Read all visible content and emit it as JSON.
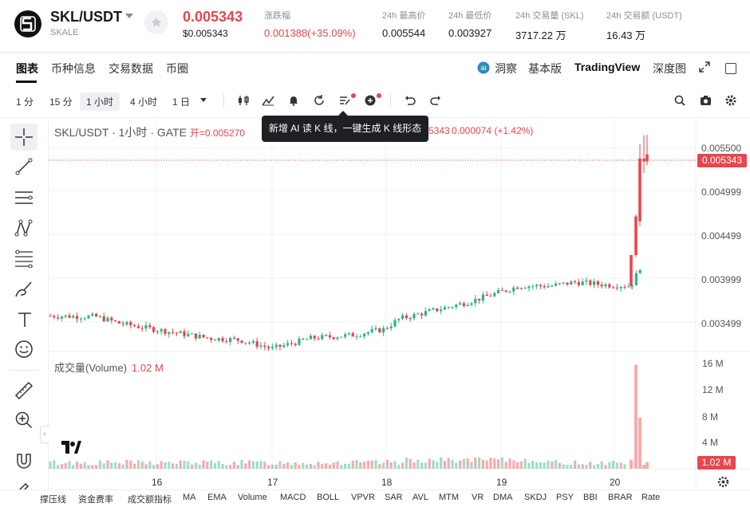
{
  "header": {
    "pair": "SKL/USDT",
    "name": "SKALE",
    "price": "0.005343",
    "price_usd": "$0.005343",
    "stats": [
      {
        "label": "涨跌幅",
        "value": "0.001388(+35.09%)",
        "red": true
      },
      {
        "label": "24h 最高价",
        "value": "0.005544"
      },
      {
        "label": "24h 最低价",
        "value": "0.003927"
      },
      {
        "label": "24h 交易量 (SKL)",
        "value": "3717.22 万"
      },
      {
        "label": "24h 交易额 (USDT)",
        "value": "16.43 万"
      }
    ]
  },
  "tabs": [
    "图表",
    "币种信息",
    "交易数据",
    "币圈"
  ],
  "right_tabs": [
    "洞察",
    "基本版",
    "TradingView",
    "深度图"
  ],
  "timeframes": [
    "1 分",
    "15 分",
    "1 小时",
    "4 小时",
    "1 日"
  ],
  "active_timeframe": "1 小时",
  "chart": {
    "legend_title": "SKL/USDT · 1小时 · GATE",
    "open_label": "开=0.005270",
    "change_fragment": "5343",
    "change": "0.000074 (+1.42%)",
    "tooltip": "新增 AI 读 K 线，一键生成 K 线形态",
    "price_badge": "0.005343",
    "volume_label": "成交量(Volume)",
    "volume_value": "1.02 M",
    "volume_badge": "1.02 M"
  },
  "chart_data": {
    "type": "candlestick",
    "price_axis": [
      "0.005500",
      "0.004999",
      "0.004499",
      "0.003999",
      "0.003499"
    ],
    "volume_axis": [
      "16 M",
      "12 M",
      "8 M",
      "4 M"
    ],
    "x_ticks": [
      "16",
      "17",
      "18",
      "19",
      "20"
    ],
    "last_price": 0.005343,
    "last_volume_m": 1.02,
    "ylim": [
      0.0033,
      0.00572
    ],
    "vol_max_m": 17.5
  },
  "indicators": [
    "撑压线",
    "资金费率",
    "成交额指标",
    "MA",
    "EMA",
    "Volume",
    "MACD",
    "BOLL",
    "VPVR",
    "SAR",
    "AVL",
    "MTM",
    "VR",
    "DMA",
    "SKDJ",
    "PSY",
    "BBI",
    "BRAR",
    "Rate"
  ],
  "colors": {
    "up": "#2bb48a",
    "down": "#e8464c",
    "accent": "#111111"
  }
}
